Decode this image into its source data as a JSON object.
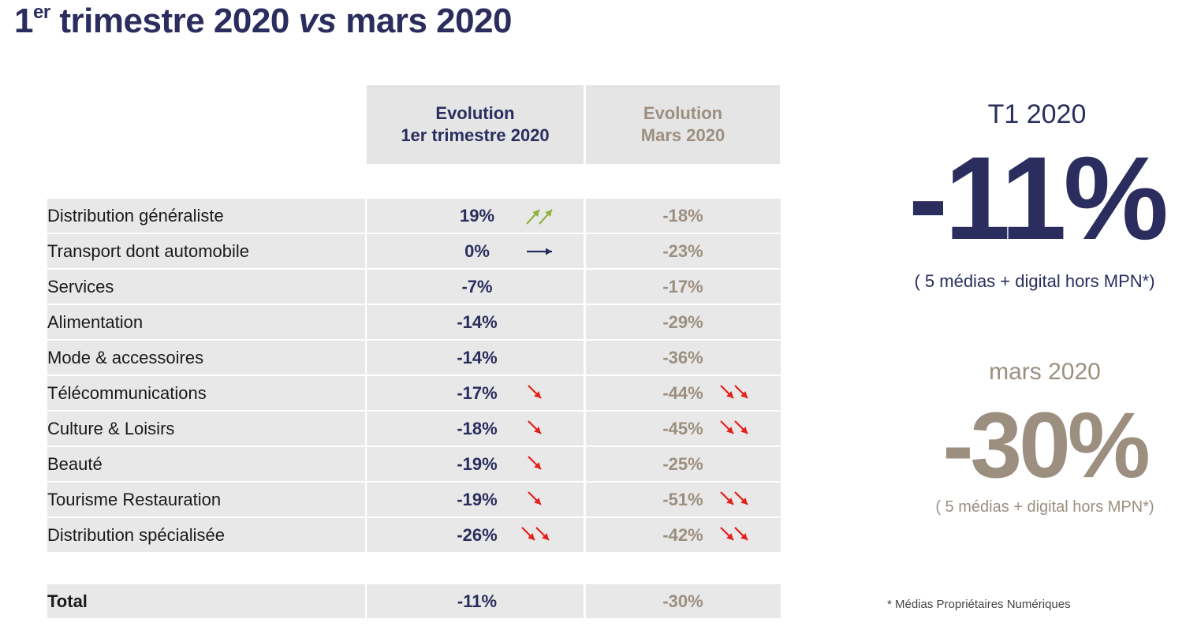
{
  "title": {
    "prefix": "1",
    "sup": "er",
    "main": " trimestre 2020 ",
    "vs": "vs",
    "suffix": " mars 2020"
  },
  "headers": {
    "col1_line1": "Evolution",
    "col1_line2": "1er trimestre 2020",
    "col2_line1": "Evolution",
    "col2_line2": "Mars 2020"
  },
  "rows": [
    {
      "label": "Distribution généraliste",
      "q1": "19%",
      "q1_arrow": "up-double",
      "mar": "-18%",
      "mar_arrow": ""
    },
    {
      "label": "Transport dont automobile",
      "q1": "0%",
      "q1_arrow": "flat",
      "mar": "-23%",
      "mar_arrow": ""
    },
    {
      "label": "Services",
      "q1": "-7%",
      "q1_arrow": "",
      "mar": "-17%",
      "mar_arrow": ""
    },
    {
      "label": "Alimentation",
      "q1": "-14%",
      "q1_arrow": "",
      "mar": "-29%",
      "mar_arrow": ""
    },
    {
      "label": "Mode & accessoires",
      "q1": "-14%",
      "q1_arrow": "",
      "mar": "-36%",
      "mar_arrow": ""
    },
    {
      "label": "Télécommunications",
      "q1": "-17%",
      "q1_arrow": "down",
      "mar": "-44%",
      "mar_arrow": "down-double"
    },
    {
      "label": "Culture & Loisirs",
      "q1": "-18%",
      "q1_arrow": "down",
      "mar": "-45%",
      "mar_arrow": "down-double"
    },
    {
      "label": "Beauté",
      "q1": "-19%",
      "q1_arrow": "down",
      "mar": "-25%",
      "mar_arrow": ""
    },
    {
      "label": "Tourisme Restauration",
      "q1": "-19%",
      "q1_arrow": "down",
      "mar": "-51%",
      "mar_arrow": "down-double"
    },
    {
      "label": "Distribution spécialisée",
      "q1": "-26%",
      "q1_arrow": "down-double",
      "mar": "-42%",
      "mar_arrow": "down-double"
    }
  ],
  "total": {
    "label": "Total",
    "q1": "-11%",
    "mar": "-30%"
  },
  "kpi_t1": {
    "label": "T1 2020",
    "value": "-11%",
    "note": "( 5 médias + digital hors MPN*)"
  },
  "kpi_mar": {
    "label": "mars 2020",
    "value": "-30%",
    "note": "( 5 médias + digital hors MPN*)"
  },
  "footnote": "* Médias Propriétaires Numériques",
  "colors": {
    "navy": "#2b2d5e",
    "taupe": "#9c8f80",
    "grey_cell": "#e8e8e8",
    "arrow_up": "#8db33a",
    "arrow_down": "#e3201b",
    "arrow_flat": "#2b2d5e"
  }
}
